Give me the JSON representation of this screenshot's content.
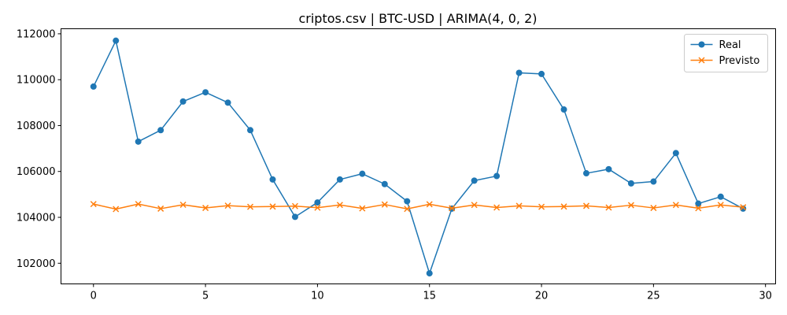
{
  "chart_data": {
    "type": "line",
    "title": "criptos.csv | BTC-USD | ARIMA(4, 0, 2)",
    "xlabel": "",
    "ylabel": "",
    "xlim": [
      -1.45,
      30.45
    ],
    "ylim": [
      101100,
      112220
    ],
    "xticks": [
      0,
      5,
      10,
      15,
      20,
      25,
      30
    ],
    "yticks": [
      102000,
      104000,
      106000,
      108000,
      110000,
      112000
    ],
    "grid": false,
    "legend_position": "top-right",
    "x": [
      0,
      1,
      2,
      3,
      4,
      5,
      6,
      7,
      8,
      9,
      10,
      11,
      12,
      13,
      14,
      15,
      16,
      17,
      18,
      19,
      20,
      21,
      22,
      23,
      24,
      25,
      26,
      27,
      28,
      29
    ],
    "series": [
      {
        "name": "Real",
        "color": "#1f77b4",
        "marker": "circle",
        "values": [
          109700,
          111700,
          107300,
          107800,
          109050,
          109450,
          109000,
          107800,
          105650,
          104020,
          104650,
          105650,
          105900,
          105450,
          104700,
          101560,
          104380,
          105600,
          105800,
          110300,
          110250,
          108700,
          105920,
          106100,
          105480,
          105560,
          106800,
          104600,
          104900,
          104380
        ]
      },
      {
        "name": "Previsto",
        "color": "#ff7f0e",
        "marker": "x",
        "values": [
          104580,
          104360,
          104580,
          104380,
          104550,
          104410,
          104510,
          104460,
          104470,
          104490,
          104420,
          104540,
          104390,
          104560,
          104370,
          104570,
          104400,
          104540,
          104430,
          104500,
          104460,
          104470,
          104500,
          104430,
          104530,
          104410,
          104540,
          104400,
          104540,
          104440
        ]
      }
    ]
  }
}
